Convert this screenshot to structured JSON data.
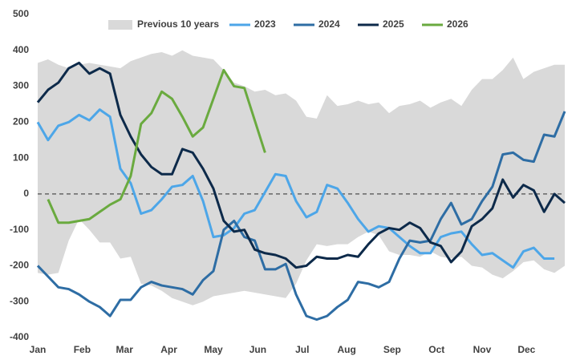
{
  "chart_data": {
    "type": "line",
    "x": [
      0,
      1,
      2,
      3,
      4,
      5,
      6,
      7,
      8,
      9,
      10,
      11,
      12,
      13,
      14,
      15,
      16,
      17,
      18,
      19,
      20,
      21,
      22,
      23,
      24,
      25,
      26,
      27,
      28,
      29,
      30,
      31,
      32,
      33,
      34,
      35,
      36,
      37,
      38,
      39,
      40,
      41,
      42,
      43,
      44,
      45,
      46,
      47,
      48,
      49,
      50,
      51
    ],
    "xlim": [
      0,
      51
    ],
    "xticks": [
      {
        "value": 0,
        "label": "Jan"
      },
      {
        "value": 4.3,
        "label": "Feb"
      },
      {
        "value": 8.4,
        "label": "Mar"
      },
      {
        "value": 12.7,
        "label": "Apr"
      },
      {
        "value": 17,
        "label": "May"
      },
      {
        "value": 21.3,
        "label": "Jun"
      },
      {
        "value": 25.6,
        "label": "Jul"
      },
      {
        "value": 29.9,
        "label": "Aug"
      },
      {
        "value": 34.3,
        "label": "Sep"
      },
      {
        "value": 38.6,
        "label": "Oct"
      },
      {
        "value": 43,
        "label": "Nov"
      },
      {
        "value": 47.3,
        "label": "Dec"
      }
    ],
    "ylim": [
      -400,
      500
    ],
    "yticks": [
      -400,
      -300,
      -200,
      -100,
      0,
      100,
      200,
      300,
      400,
      500
    ],
    "grid": false,
    "legend": "top",
    "band": {
      "name": "Previous 10 years",
      "color": "#d9d9d9",
      "upper": [
        365,
        375,
        360,
        350,
        360,
        365,
        360,
        355,
        350,
        370,
        380,
        390,
        395,
        385,
        400,
        385,
        380,
        375,
        345,
        310,
        300,
        285,
        290,
        275,
        280,
        260,
        215,
        210,
        275,
        245,
        250,
        260,
        250,
        255,
        225,
        245,
        250,
        260,
        240,
        255,
        265,
        245,
        290,
        320,
        320,
        345,
        380,
        320,
        340,
        350,
        360,
        360
      ],
      "lower": [
        -220,
        -225,
        -220,
        -130,
        -70,
        -100,
        -135,
        -135,
        -180,
        -175,
        -250,
        -255,
        -270,
        -290,
        -300,
        -310,
        -300,
        -285,
        -280,
        -275,
        -270,
        -275,
        -280,
        -285,
        -290,
        -250,
        -185,
        -140,
        -145,
        -140,
        -140,
        -120,
        -105,
        -115,
        -160,
        -170,
        -170,
        -175,
        -160,
        -175,
        -180,
        -175,
        -200,
        -205,
        -225,
        -235,
        -215,
        -190,
        -185,
        -210,
        -220,
        -200
      ]
    },
    "series": [
      {
        "name": "2023",
        "color": "#4da6e8",
        "values": [
          200,
          150,
          190,
          200,
          220,
          205,
          235,
          215,
          70,
          30,
          -55,
          -45,
          -15,
          20,
          25,
          50,
          -20,
          -120,
          -115,
          -95,
          -55,
          -45,
          5,
          55,
          50,
          -20,
          -65,
          -50,
          25,
          15,
          -25,
          -70,
          -105,
          -90,
          -95,
          -120,
          -145,
          -165,
          -165,
          -120,
          -110,
          -105,
          -140,
          -170,
          -165,
          -185,
          -205,
          -160,
          -150,
          -180,
          -180,
          null
        ]
      },
      {
        "name": "2024",
        "color": "#2e6da4",
        "values": [
          -200,
          -230,
          -260,
          -265,
          -280,
          -300,
          -315,
          -340,
          -295,
          -295,
          -260,
          -245,
          -255,
          -260,
          -265,
          -280,
          -240,
          -215,
          -100,
          -75,
          -120,
          -130,
          -210,
          -210,
          -195,
          -280,
          -340,
          -350,
          -340,
          -315,
          -295,
          -245,
          -250,
          -260,
          -245,
          -180,
          -130,
          -135,
          -130,
          -70,
          -25,
          -85,
          -70,
          -20,
          20,
          110,
          115,
          95,
          90,
          165,
          160,
          230
        ]
      },
      {
        "name": "2025",
        "color": "#0d2a4a",
        "values": [
          255,
          290,
          310,
          350,
          365,
          335,
          350,
          335,
          220,
          160,
          110,
          75,
          55,
          55,
          125,
          115,
          70,
          15,
          -75,
          -105,
          -100,
          -155,
          -165,
          -170,
          -180,
          -205,
          -200,
          -175,
          -180,
          -180,
          -170,
          -175,
          -140,
          -110,
          -95,
          -100,
          -80,
          -95,
          -135,
          -145,
          -190,
          -160,
          -90,
          -70,
          -40,
          40,
          -10,
          25,
          10,
          -50,
          0,
          -25
        ]
      },
      {
        "name": "2026",
        "color": "#6aaa3f",
        "values": [
          null,
          -15,
          -80,
          -80,
          -75,
          -70,
          -50,
          -30,
          -15,
          50,
          195,
          225,
          285,
          265,
          215,
          160,
          185,
          265,
          345,
          300,
          295,
          205,
          115,
          null,
          null,
          null,
          null,
          null,
          null,
          null,
          null,
          null,
          null,
          null,
          null,
          null,
          null,
          null,
          null,
          null,
          null,
          null,
          null,
          null,
          null,
          null,
          null,
          null,
          null,
          null,
          null,
          null
        ]
      }
    ]
  }
}
